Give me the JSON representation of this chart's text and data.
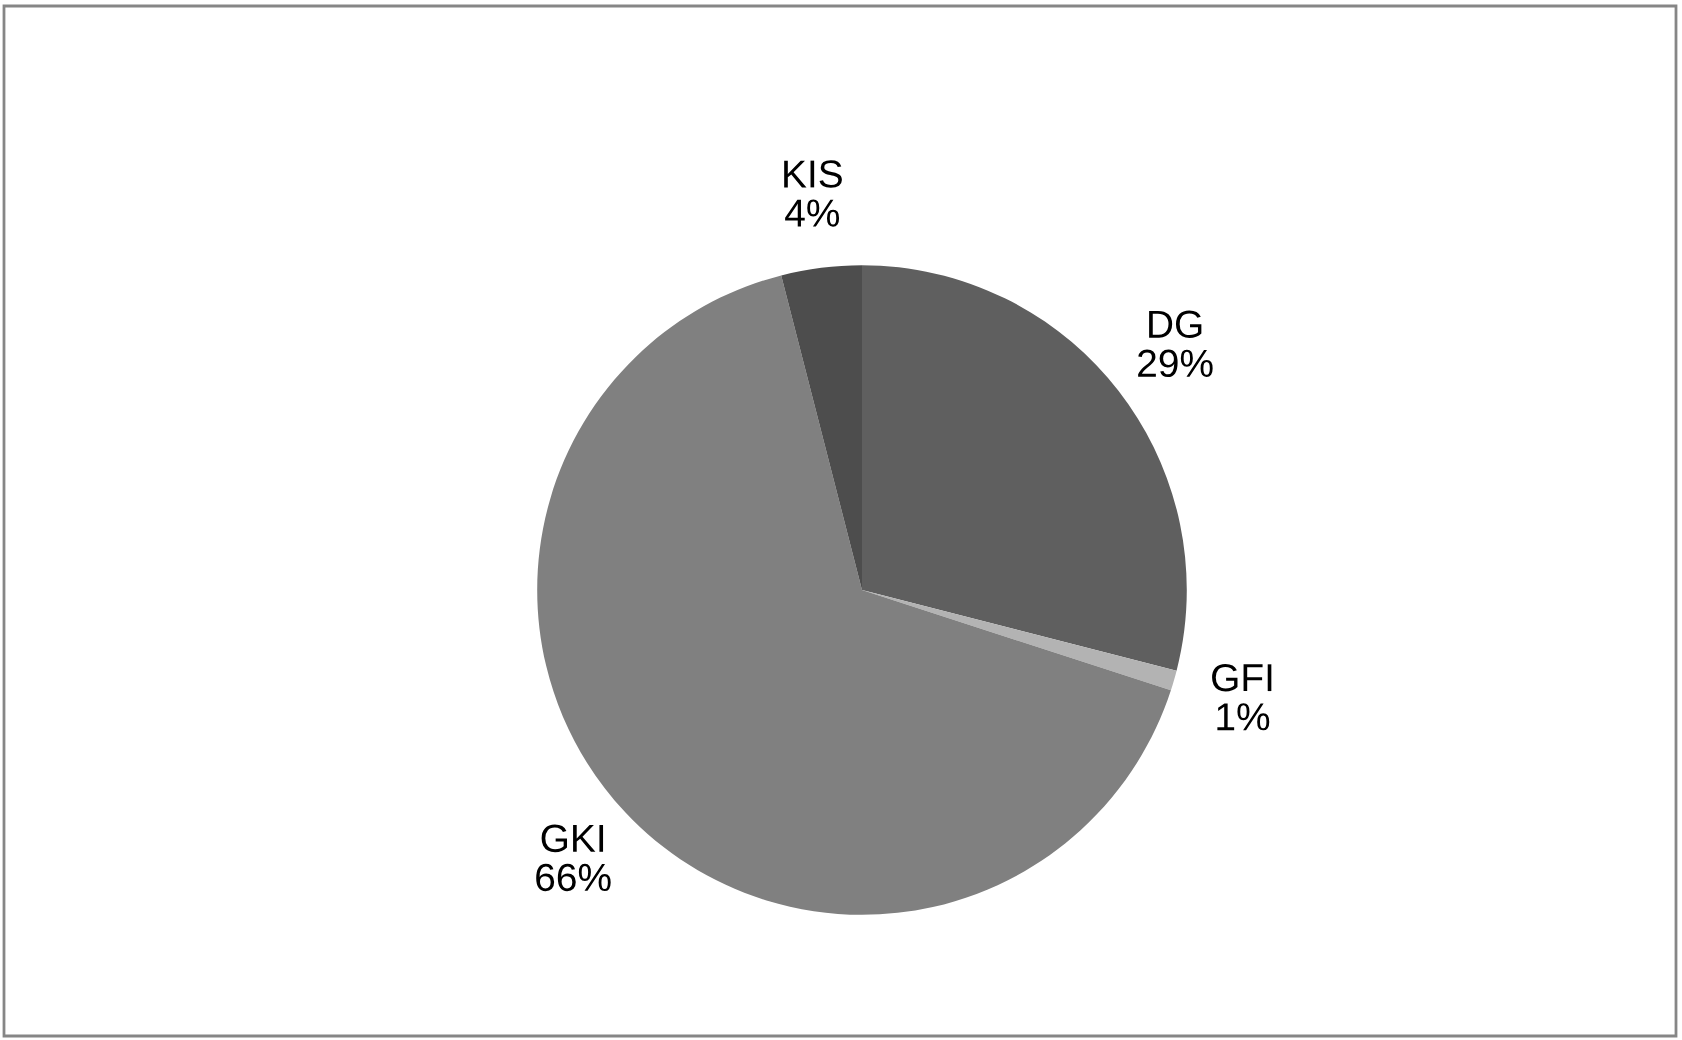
{
  "chart_data": {
    "type": "pie",
    "categories": [
      "DG",
      "GFI",
      "GKI",
      "KIS"
    ],
    "values": [
      29,
      1,
      66,
      4
    ],
    "value_labels": [
      "29%",
      "1%",
      "66%",
      "4%"
    ],
    "colors": [
      "#5f5f5f",
      "#b3b3b3",
      "#808080",
      "#4d4d4d"
    ],
    "legend": false
  }
}
